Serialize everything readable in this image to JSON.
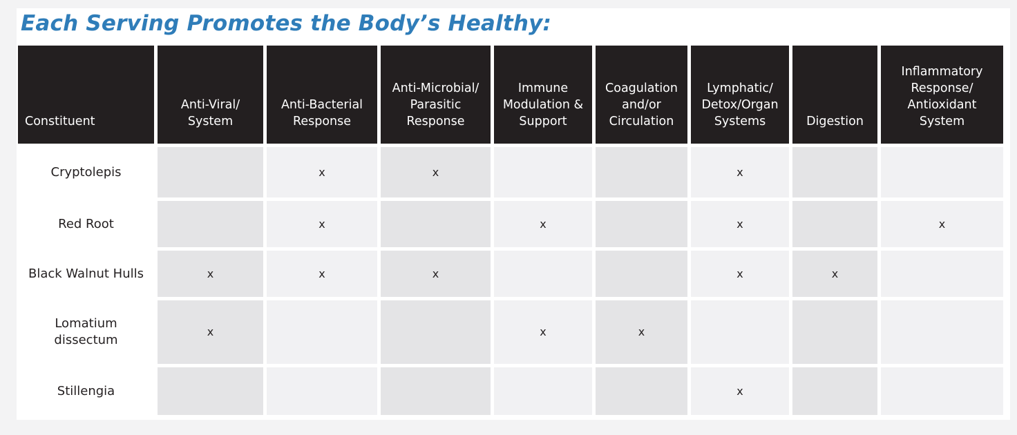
{
  "title": "Each Serving Promotes the Body’s Healthy:",
  "table": {
    "headers": [
      "Constituent",
      "Anti-Viral/\nSystem",
      "Anti-Bacterial\nResponse",
      "Anti-Microbial/\nParasitic\nResponse",
      "Immune\nModulation &\nSupport",
      "Coagulation\nand/or\nCirculation",
      "Lymphatic/\nDetox/Organ\nSystems",
      "Digestion",
      "Inflammatory\nResponse/\nAntioxidant\nSystem"
    ],
    "rows": [
      {
        "name": "Cryptolepis",
        "cells": [
          "",
          "x",
          "x",
          "",
          "",
          "x",
          "",
          ""
        ]
      },
      {
        "name": "Red Root",
        "cells": [
          "",
          "x",
          "",
          "x",
          "",
          "x",
          "",
          "x"
        ]
      },
      {
        "name": "Black Walnut Hulls",
        "cells": [
          "x",
          "x",
          "x",
          "",
          "",
          "x",
          "x",
          ""
        ]
      },
      {
        "name": "Lomatium\ndissectum",
        "cells": [
          "x",
          "",
          "",
          "x",
          "x",
          "",
          "",
          ""
        ]
      },
      {
        "name": "Stillengia",
        "cells": [
          "",
          "",
          "",
          "",
          "",
          "x",
          "",
          ""
        ]
      }
    ]
  },
  "colors": {
    "title": "#2f7db9",
    "header_bg": "#231f20",
    "cell_dark": "#e4e4e6",
    "cell_light": "#f1f1f3"
  }
}
